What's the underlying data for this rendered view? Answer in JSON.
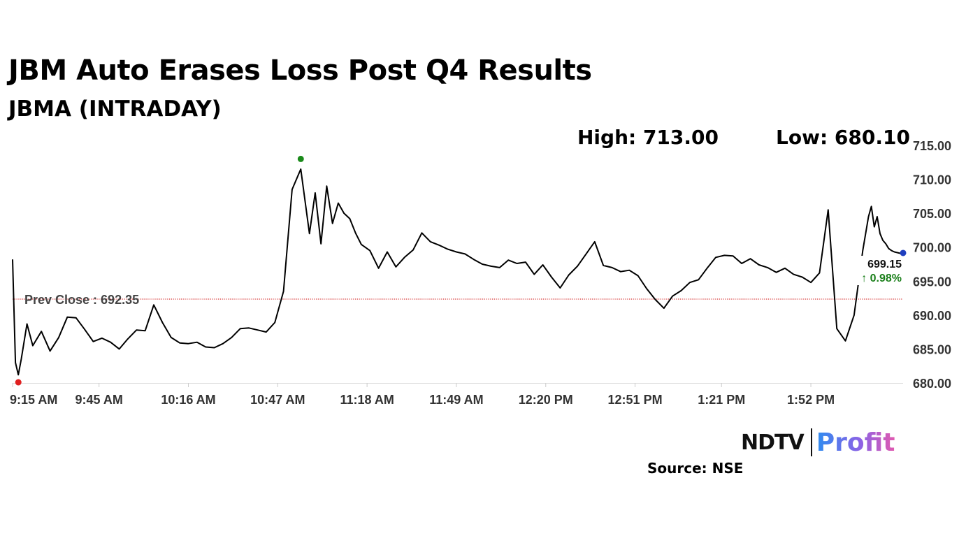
{
  "title": "JBM Auto Erases Loss Post Q4 Results",
  "subtitle": "JBMA (INTRADAY)",
  "stats": {
    "high": "High: 713.00",
    "low": "Low: 680.10"
  },
  "logo": {
    "brand": "NDTV",
    "product": "Profit"
  },
  "source": "Source: NSE",
  "colors": {
    "line": "#000000",
    "prev_close_line": "#cc0000",
    "gain": "#1a7f1a",
    "high_marker": "#1a8a1a",
    "low_marker": "#e02020",
    "last_marker": "#1f3fbf",
    "grid": "#e8e8e8"
  },
  "chart_data": {
    "type": "line",
    "x_tick_labels": [
      "9:15 AM",
      "9:45 AM",
      "10:16 AM",
      "10:47 AM",
      "11:18 AM",
      "11:49 AM",
      "12:20 PM",
      "12:51 PM",
      "1:21 PM",
      "1:52 PM"
    ],
    "x_range": [
      "9:15 AM",
      "2:24 PM"
    ],
    "y_tick_labels": [
      "715.00",
      "710.00",
      "705.00",
      "700.00",
      "695.00",
      "690.00",
      "685.00",
      "680.00"
    ],
    "ylim": [
      680,
      715
    ],
    "y_axis_position": "right",
    "grid": false,
    "prev_close": {
      "label": "Prev Close : 692.35",
      "value": 692.35
    },
    "last": {
      "price": "699.15",
      "change": "↑ 0.98%",
      "value": 699.15
    },
    "high_value": 713.0,
    "low_value": 680.1,
    "series": [
      {
        "x": [
          "9:15",
          "9:16",
          "9:17",
          "9:18",
          "9:20",
          "9:22",
          "9:25",
          "9:28",
          "9:31",
          "9:34",
          "9:37",
          "9:40",
          "9:43",
          "9:46",
          "9:49",
          "9:52",
          "9:55",
          "9:58",
          "10:01",
          "10:04",
          "10:07",
          "10:10",
          "10:13",
          "10:16",
          "10:19",
          "10:22",
          "10:25",
          "10:28",
          "10:31",
          "10:34",
          "10:37",
          "10:40",
          "10:43",
          "10:46",
          "10:49",
          "10:52",
          "10:55",
          "10:58",
          "11:00",
          "11:02",
          "11:04",
          "11:06",
          "11:08",
          "11:10",
          "11:12",
          "11:14",
          "11:16",
          "11:19",
          "11:22",
          "11:25",
          "11:28",
          "11:31",
          "11:34",
          "11:37",
          "11:40",
          "11:43",
          "11:46",
          "11:49",
          "11:52",
          "11:55",
          "11:58",
          "12:01",
          "12:04",
          "12:07",
          "12:10",
          "12:13",
          "12:16",
          "12:19",
          "12:22",
          "12:25",
          "12:28",
          "12:31",
          "12:34",
          "12:37",
          "12:40",
          "12:43",
          "12:46",
          "12:49",
          "12:52",
          "12:55",
          "12:58",
          "13:01",
          "13:04",
          "13:07",
          "13:10",
          "13:13",
          "13:16",
          "13:19",
          "13:22",
          "13:25",
          "13:28",
          "13:31",
          "13:34",
          "13:37",
          "13:40",
          "13:43",
          "13:46",
          "13:49",
          "13:52",
          "13:55",
          "13:58",
          "14:01",
          "14:04",
          "14:07",
          "14:10",
          "14:12",
          "14:13",
          "14:14",
          "14:15",
          "14:16",
          "14:17",
          "14:18",
          "14:19",
          "14:20",
          "14:21",
          "14:22",
          "14:23",
          "14:24"
        ],
        "y": [
          698.2,
          683.0,
          681.2,
          683.5,
          688.7,
          685.5,
          687.6,
          684.7,
          686.7,
          689.7,
          689.6,
          687.9,
          686.1,
          686.6,
          686.0,
          685.0,
          686.5,
          687.8,
          687.7,
          691.5,
          688.9,
          686.7,
          685.9,
          685.8,
          686.0,
          685.3,
          685.2,
          685.8,
          686.7,
          688.0,
          688.1,
          687.8,
          687.5,
          688.9,
          693.5,
          708.5,
          711.5,
          702.0,
          708.0,
          700.5,
          709.0,
          703.5,
          706.5,
          705.0,
          704.2,
          702.1,
          700.4,
          699.5,
          696.9,
          699.3,
          697.1,
          698.5,
          699.6,
          702.1,
          700.8,
          700.3,
          699.7,
          699.3,
          699.0,
          698.2,
          697.5,
          697.2,
          697.0,
          698.1,
          697.6,
          697.8,
          696.0,
          697.4,
          695.6,
          694.0,
          695.9,
          697.2,
          699.0,
          700.8,
          697.3,
          697.0,
          696.4,
          696.6,
          695.8,
          693.9,
          692.3,
          691.0,
          692.8,
          693.6,
          694.8,
          695.2,
          696.9,
          698.5,
          698.8,
          698.7,
          697.6,
          698.3,
          697.4,
          697.0,
          696.3,
          696.9,
          696.0,
          695.6,
          694.8,
          696.2,
          705.5,
          688.0,
          686.2,
          690.0,
          699.5,
          704.5,
          706.0,
          703.0,
          704.5,
          702.0,
          701.0,
          700.5,
          699.8,
          699.5,
          699.3,
          699.2,
          699.1,
          699.15
        ]
      }
    ]
  }
}
